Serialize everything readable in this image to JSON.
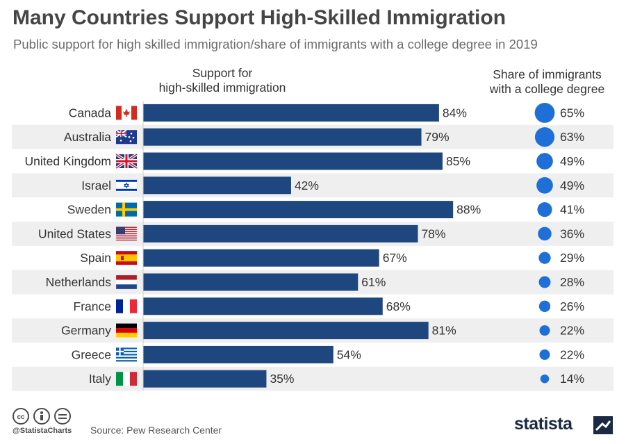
{
  "header": {
    "title": "Many Countries Support High-Skilled Immigration",
    "subtitle": "Public support for high skilled immigration/share of immigrants with a college degree in 2019"
  },
  "columns": {
    "left_line1": "Support for",
    "left_line2": "high-skilled immigration",
    "right_line1": "Share of immigrants",
    "right_line2": "with a college degree"
  },
  "chart_data": {
    "type": "bar",
    "orientation": "horizontal",
    "categories": [
      "Canada",
      "Australia",
      "United Kingdom",
      "Israel",
      "Sweden",
      "United States",
      "Spain",
      "Netherlands",
      "France",
      "Germany",
      "Greece",
      "Italy"
    ],
    "series": [
      {
        "name": "Support for high-skilled immigration",
        "values": [
          84,
          79,
          85,
          42,
          88,
          78,
          67,
          61,
          68,
          81,
          54,
          35
        ],
        "unit": "%"
      },
      {
        "name": "Share of immigrants with a college degree",
        "values": [
          65,
          63,
          49,
          49,
          41,
          36,
          29,
          28,
          26,
          22,
          22,
          14
        ],
        "unit": "%"
      }
    ],
    "flags": [
      "canada-flag",
      "australia-flag",
      "uk-flag",
      "israel-flag",
      "sweden-flag",
      "usa-flag",
      "spain-flag",
      "netherlands-flag",
      "france-flag",
      "germany-flag",
      "greece-flag",
      "italy-flag"
    ],
    "colors": {
      "bar": "#1f477f",
      "bubble": "#1f6fd8",
      "stripe": "#efefef"
    }
  },
  "footer": {
    "handle": "@StatistaCharts",
    "source": "Source: Pew Research Center",
    "logo": "statista"
  }
}
